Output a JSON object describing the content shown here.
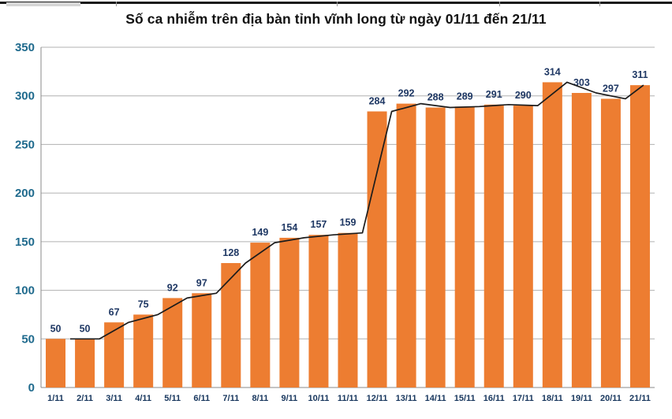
{
  "chart_data": {
    "type": "bar",
    "title": "Số ca nhiễm trên địa bàn tỉnh vĩnh long từ ngày 01/11 đến 21/11",
    "categories": [
      "1/11",
      "2/11",
      "3/11",
      "4/11",
      "5/11",
      "6/11",
      "7/11",
      "8/11",
      "9/11",
      "10/11",
      "11/11",
      "12/11",
      "13/11",
      "14/11",
      "15/11",
      "16/11",
      "17/11",
      "18/11",
      "19/11",
      "20/11",
      "21/11"
    ],
    "values": [
      50,
      50,
      67,
      75,
      92,
      97,
      128,
      149,
      154,
      157,
      159,
      284,
      292,
      288,
      289,
      291,
      290,
      314,
      303,
      297,
      311
    ],
    "data_labels": [
      "50",
      "50",
      "67",
      "75",
      "92",
      "97",
      "128",
      "149",
      "154",
      "157",
      "159",
      "284",
      "292",
      "288",
      "289",
      "291",
      "290",
      "314",
      "303",
      "297",
      "311"
    ],
    "overlay_line": {
      "name": "trend-line",
      "values": [
        50,
        50,
        67,
        75,
        92,
        97,
        128,
        149,
        154,
        157,
        159,
        284,
        292,
        288,
        289,
        291,
        290,
        314,
        303,
        297,
        311
      ],
      "color": "#1c1c1c"
    },
    "xlabel": "",
    "ylabel": "",
    "ylim": [
      0,
      350
    ],
    "ytick_step": 50,
    "ytick_labels": [
      "0",
      "50",
      "100",
      "150",
      "200",
      "250",
      "300",
      "350"
    ],
    "grid": "horizontal",
    "legend": "none",
    "colors": {
      "bar": "#ED7D31",
      "gridline": "#b0b0b0",
      "axis_line": "#8a8a8a",
      "y_tick_label": "#1F6A8D",
      "x_tick_label": "#17365D",
      "data_label": "#1F3864",
      "title": "#111111"
    }
  },
  "decor": {
    "top_strip_color": "#1a1a1a",
    "tick_positions": [
      147,
      427,
      633,
      760
    ]
  }
}
